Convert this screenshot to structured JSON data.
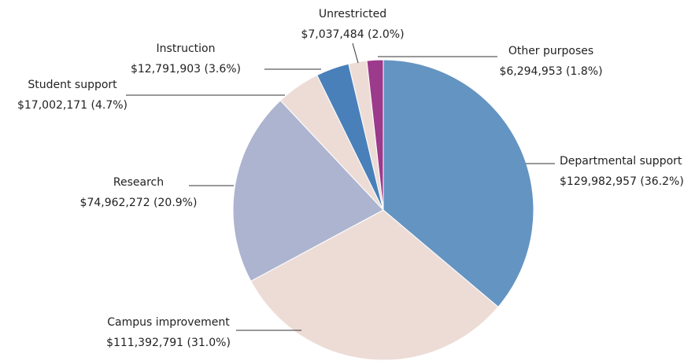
{
  "chart_data": {
    "type": "pie",
    "categories": [
      "Departmental support",
      "Campus improvement",
      "Research",
      "Student support",
      "Instruction",
      "Unrestricted",
      "Other purposes"
    ],
    "values": [
      129982957,
      111392791,
      74962272,
      17002171,
      12791903,
      7037484,
      6294953
    ],
    "value_labels": [
      "$129,982,957  (36.2%)",
      "$111,392,791  (31.0%)",
      "$74,962,272  (20.9%)",
      "$17,002,171  (4.7%)",
      "$12,791,903  (3.6%)",
      "$7,037,484  (2.0%)",
      "$6,294,953  (1.8%)"
    ],
    "colors": [
      "#6494c1",
      "#eddcd6",
      "#adb4d0",
      "#eddcd6",
      "#4a80b9",
      "#eddcd6",
      "#9c3a8b"
    ]
  }
}
